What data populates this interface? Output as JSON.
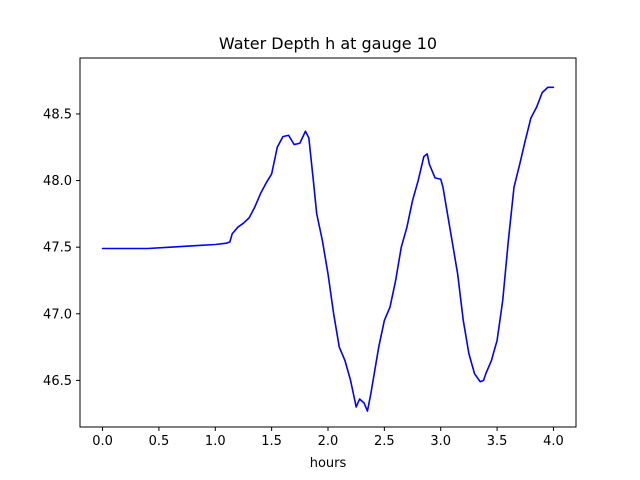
{
  "chart_data": {
    "type": "line",
    "title": "Water Depth h at gauge 10",
    "xlabel": "hours",
    "ylabel": "",
    "xlim": [
      -0.2,
      4.2
    ],
    "ylim": [
      46.15,
      48.92
    ],
    "x_ticks": [
      0.0,
      0.5,
      1.0,
      1.5,
      2.0,
      2.5,
      3.0,
      3.5,
      4.0
    ],
    "x_tick_labels": [
      "0.0",
      "0.5",
      "1.0",
      "1.5",
      "2.0",
      "2.5",
      "3.0",
      "3.5",
      "4.0"
    ],
    "y_ticks": [
      46.5,
      47.0,
      47.5,
      48.0,
      48.5
    ],
    "y_tick_labels": [
      "46.5",
      "47.0",
      "47.5",
      "48.0",
      "48.5"
    ],
    "grid": false,
    "series": [
      {
        "color": "#0000ff",
        "x": [
          0.0,
          0.2,
          0.4,
          0.6,
          0.8,
          1.0,
          1.1,
          1.13,
          1.15,
          1.2,
          1.25,
          1.3,
          1.35,
          1.4,
          1.45,
          1.5,
          1.55,
          1.6,
          1.65,
          1.7,
          1.75,
          1.8,
          1.83,
          1.87,
          1.9,
          1.95,
          2.0,
          2.05,
          2.1,
          2.15,
          2.2,
          2.25,
          2.28,
          2.32,
          2.35,
          2.38,
          2.4,
          2.45,
          2.5,
          2.55,
          2.6,
          2.65,
          2.7,
          2.75,
          2.8,
          2.85,
          2.88,
          2.9,
          2.95,
          3.0,
          3.02,
          3.05,
          3.1,
          3.15,
          3.2,
          3.25,
          3.3,
          3.35,
          3.38,
          3.4,
          3.45,
          3.5,
          3.55,
          3.6,
          3.65,
          3.7,
          3.75,
          3.8,
          3.85,
          3.9,
          3.95,
          4.0
        ],
        "y": [
          47.49,
          47.49,
          47.49,
          47.5,
          47.51,
          47.52,
          47.53,
          47.54,
          47.6,
          47.65,
          47.68,
          47.72,
          47.8,
          47.9,
          47.98,
          48.05,
          48.25,
          48.33,
          48.34,
          48.27,
          48.28,
          48.37,
          48.32,
          48.0,
          47.75,
          47.55,
          47.3,
          47.0,
          46.75,
          46.65,
          46.5,
          46.3,
          46.36,
          46.33,
          46.27,
          46.4,
          46.5,
          46.75,
          46.95,
          47.05,
          47.25,
          47.5,
          47.65,
          47.85,
          48.0,
          48.18,
          48.2,
          48.12,
          48.02,
          48.01,
          47.95,
          47.8,
          47.55,
          47.3,
          46.95,
          46.7,
          46.55,
          46.49,
          46.5,
          46.55,
          46.65,
          46.8,
          47.1,
          47.55,
          47.95,
          48.12,
          48.3,
          48.47,
          48.55,
          48.66,
          48.7,
          48.7
        ]
      }
    ]
  }
}
